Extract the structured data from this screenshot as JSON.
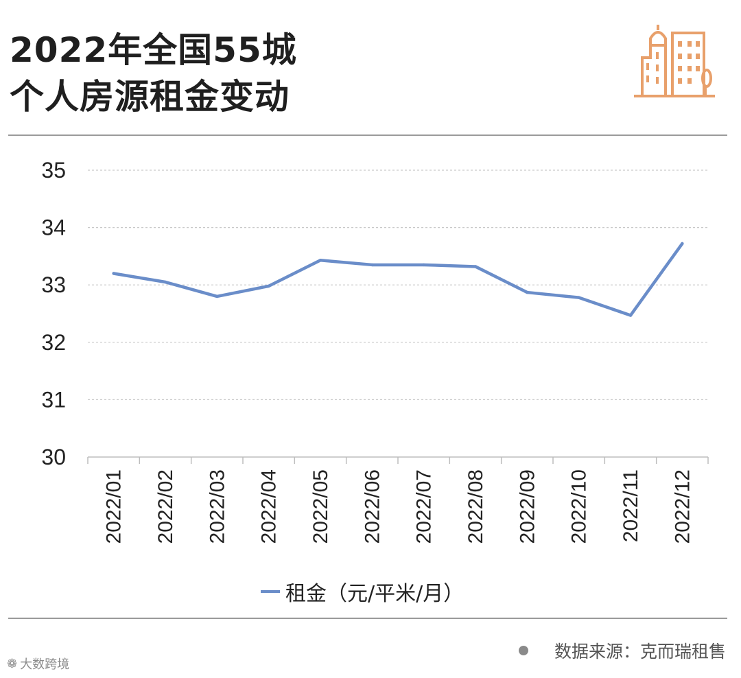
{
  "title": {
    "line1": "2022年全国55城",
    "line2": "个人房源租金变动"
  },
  "logo": {
    "icon": "city-buildings-icon",
    "color": "#e8a06b"
  },
  "chart_data": {
    "type": "line",
    "categories": [
      "2022/01",
      "2022/02",
      "2022/03",
      "2022/04",
      "2022/05",
      "2022/06",
      "2022/07",
      "2022/08",
      "2022/09",
      "2022/10",
      "2022/11",
      "2022/12"
    ],
    "series": [
      {
        "name": "租金（元/平米/月）",
        "color": "#6a8dc9",
        "values": [
          33.2,
          33.05,
          32.8,
          32.98,
          33.43,
          33.35,
          33.35,
          33.32,
          32.87,
          32.78,
          32.47,
          33.72
        ]
      }
    ],
    "yticks": [
      30,
      31,
      32,
      33,
      34,
      35
    ],
    "ylim": [
      30,
      35
    ],
    "grid": true,
    "legend": "bottom"
  },
  "footer": {
    "source": "数据来源：克而瑞租售",
    "brand": "大数跨境"
  }
}
